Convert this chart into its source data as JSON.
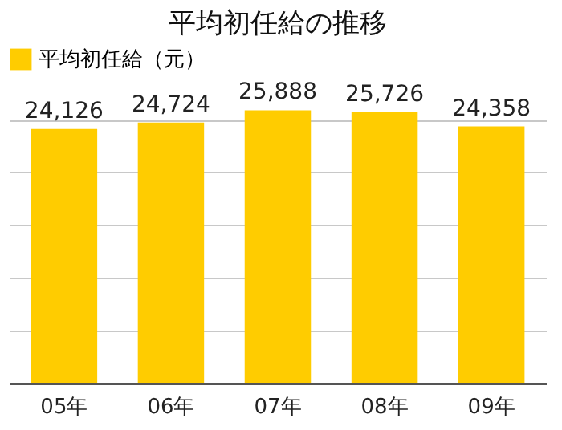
{
  "chart_data": {
    "type": "bar",
    "title": "平均初任給の推移",
    "categories": [
      "05年",
      "06年",
      "07年",
      "08年",
      "09年"
    ],
    "series": [
      {
        "name": "平均初任給（元）",
        "color": "#ffcc00",
        "values": [
          24126,
          24724,
          25888,
          25726,
          24358
        ],
        "value_labels": [
          "24,126",
          "24,724",
          "25,888",
          "25,726",
          "24,358"
        ]
      }
    ],
    "tick_labels": "x",
    "grid": "y",
    "legend": "top left"
  }
}
